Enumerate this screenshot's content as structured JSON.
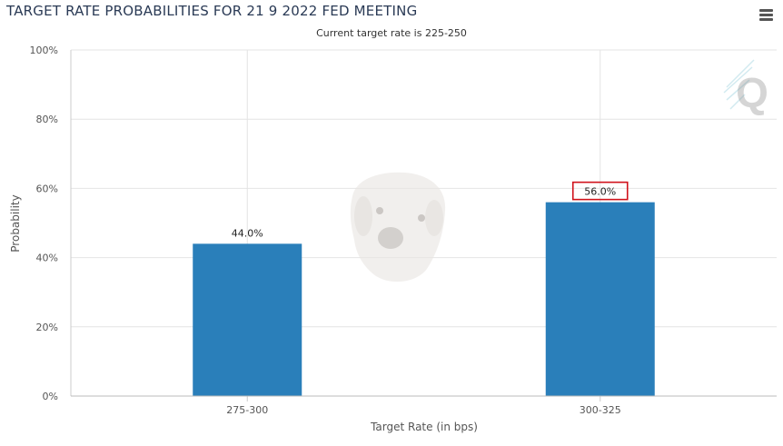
{
  "header": {
    "title": "TARGET RATE PROBABILITIES FOR 21 9 2022 FED MEETING",
    "subtitle": "Current target rate is 225-250"
  },
  "chart_data": {
    "type": "bar",
    "categories": [
      "275-300",
      "300-325"
    ],
    "values": [
      44.0,
      56.0
    ],
    "data_labels": [
      "44.0%",
      "56.0%"
    ],
    "highlighted_label_index": 1,
    "xlabel": "Target Rate (in bps)",
    "ylabel": "Probability",
    "ylim": [
      0,
      100
    ],
    "yticks": [
      "0%",
      "20%",
      "40%",
      "60%",
      "80%",
      "100%"
    ],
    "grid": true,
    "bar_color": "#2a7fba",
    "highlight_color": "#d0121b"
  },
  "watermark": {
    "logo_text": "Q"
  },
  "icons": {
    "menu": "hamburger-menu-icon"
  }
}
